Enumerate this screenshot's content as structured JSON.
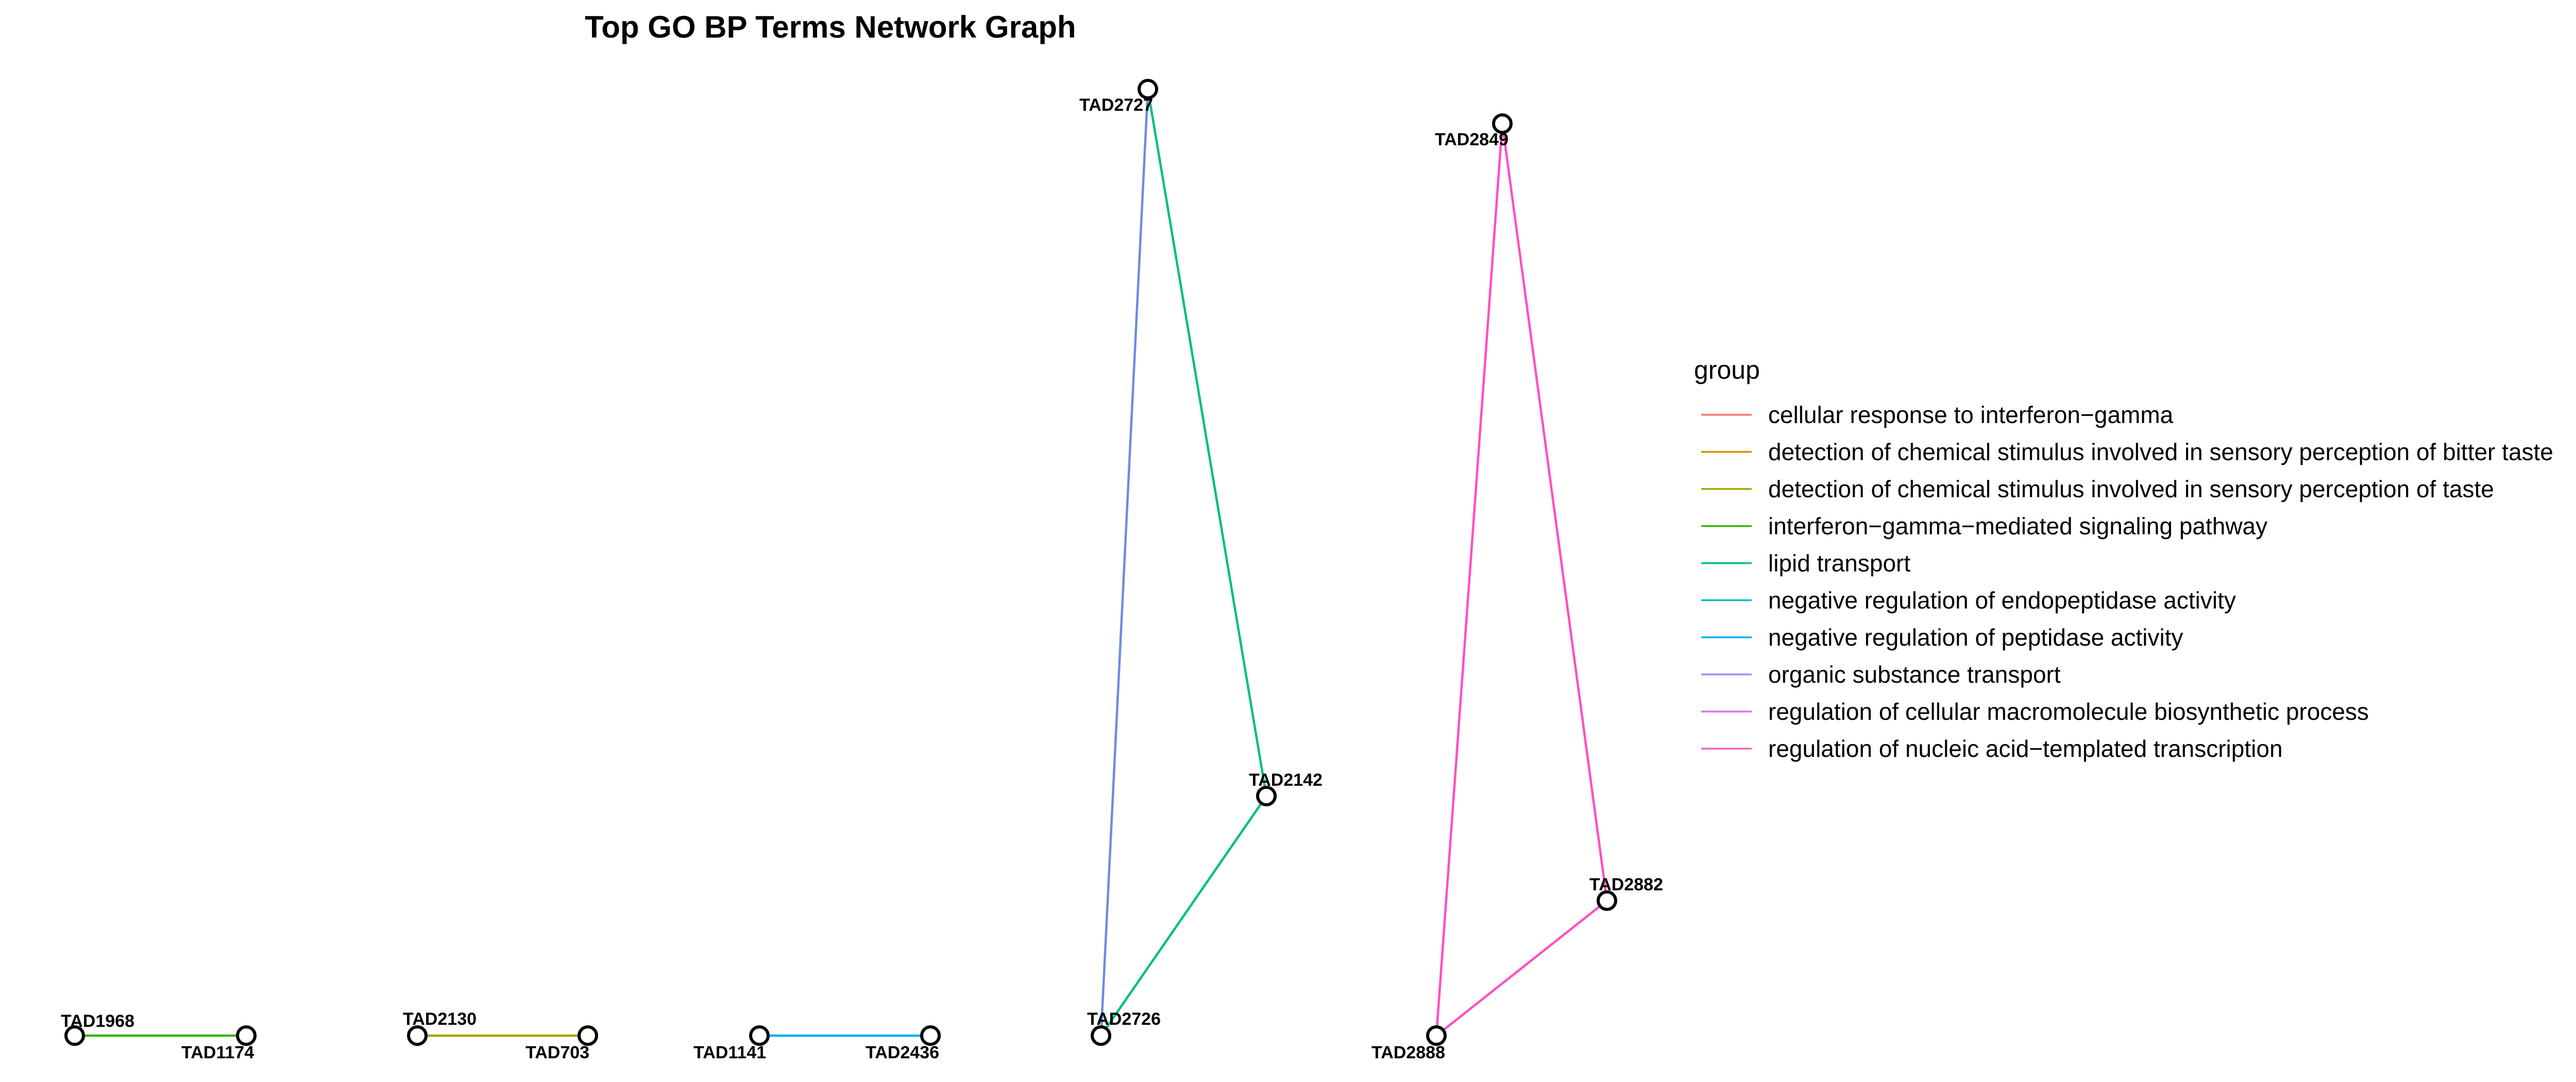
{
  "title": "Top GO BP Terms Network Graph",
  "legend": {
    "title": "group",
    "groups": [
      {
        "label": "cellular response to interferon−gamma",
        "color": "#F8766D"
      },
      {
        "label": "detection of chemical stimulus involved in sensory perception of bitter taste",
        "color": "#D89000"
      },
      {
        "label": "detection of chemical stimulus involved in sensory perception of taste",
        "color": "#A3A500"
      },
      {
        "label": "interferon−gamma−mediated signaling pathway",
        "color": "#39B600"
      },
      {
        "label": "lipid transport",
        "color": "#00BF7D"
      },
      {
        "label": "negative regulation of endopeptidase activity",
        "color": "#00BFC4"
      },
      {
        "label": "negative regulation of peptidase activity",
        "color": "#00B0F6"
      },
      {
        "label": "organic substance transport",
        "color": "#9590FF"
      },
      {
        "label": "regulation of cellular macromolecule biosynthetic process",
        "color": "#E76BF3"
      },
      {
        "label": "regulation of nucleic acid−templated transcription",
        "color": "#FF62BC"
      }
    ]
  },
  "nodes": [
    {
      "id": "TAD1968"
    },
    {
      "id": "TAD1174"
    },
    {
      "id": "TAD2130"
    },
    {
      "id": "TAD703"
    },
    {
      "id": "TAD1141"
    },
    {
      "id": "TAD2436"
    },
    {
      "id": "TAD2727"
    },
    {
      "id": "TAD2142"
    },
    {
      "id": "TAD2726"
    },
    {
      "id": "TAD2849"
    },
    {
      "id": "TAD2882"
    },
    {
      "id": "TAD2888"
    }
  ],
  "edges": [
    {
      "from": "TAD1968",
      "to": "TAD1174",
      "color": "#39B600"
    },
    {
      "from": "TAD2130",
      "to": "TAD703",
      "color": "#A3A500"
    },
    {
      "from": "TAD1141",
      "to": "TAD2436",
      "color": "#00B0F6"
    },
    {
      "from": "TAD2727",
      "to": "TAD2726",
      "color": "#6E8BE0"
    },
    {
      "from": "TAD2727",
      "to": "TAD2142",
      "color": "#00BF7D"
    },
    {
      "from": "TAD2142",
      "to": "TAD2726",
      "color": "#00BF7D"
    },
    {
      "from": "TAD2849",
      "to": "TAD2888",
      "color": "#FF4FC0"
    },
    {
      "from": "TAD2849",
      "to": "TAD2882",
      "color": "#FF4FC0"
    },
    {
      "from": "TAD2882",
      "to": "TAD2888",
      "color": "#FF4FC0"
    }
  ]
}
